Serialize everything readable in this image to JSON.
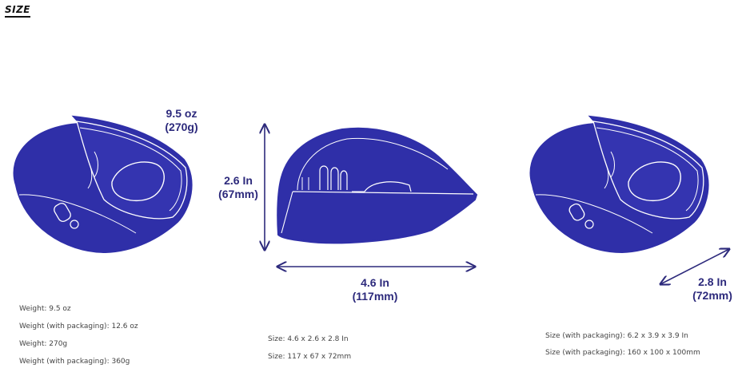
{
  "section": {
    "title": "SIZE"
  },
  "colors": {
    "product": "#2f2fa8",
    "product_line": "#ffffff",
    "dimension": "#2d2a7c"
  },
  "views": {
    "left": {
      "weight_oz": "9.5 oz",
      "weight_g": "(270g)"
    },
    "center": {
      "height_in": "2.6 In",
      "height_mm": "(67mm)",
      "length_in": "4.6 In",
      "length_mm": "(117mm)"
    },
    "right": {
      "depth_in": "2.8 In",
      "depth_mm": "(72mm)"
    }
  },
  "specs": {
    "weight": [
      "Weight: 9.5 oz",
      "Weight (with packaging): 12.6 oz",
      "Weight: 270g",
      "Weight (with packaging): 360g"
    ],
    "size": [
      "Size: 4.6 x 2.6 x 2.8 In",
      "Size: 117 x 67 x 72mm"
    ],
    "packaging": [
      "Size (with packaging): 6.2 x 3.9 x 3.9 In",
      "Size (with packaging): 160 x 100 x 100mm"
    ]
  }
}
